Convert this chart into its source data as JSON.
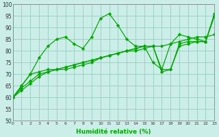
{
  "title": "",
  "xlabel": "Humidité relative (%)",
  "ylabel": "",
  "bg_color": "#cceee8",
  "grid_color": "#99ccbb",
  "line_color": "#00aa00",
  "ylim": [
    50,
    100
  ],
  "xlim": [
    0,
    23
  ],
  "yticks": [
    50,
    55,
    60,
    65,
    70,
    75,
    80,
    85,
    90,
    95,
    100
  ],
  "xticks": [
    0,
    1,
    2,
    3,
    4,
    5,
    6,
    7,
    8,
    9,
    10,
    11,
    12,
    13,
    14,
    15,
    16,
    17,
    18,
    19,
    20,
    21,
    22,
    23
  ],
  "series": [
    [
      60,
      65,
      70,
      77,
      82,
      85,
      86,
      83,
      81,
      86,
      94,
      96,
      91,
      85,
      82,
      82,
      75,
      72,
      83,
      87,
      86,
      85,
      84,
      96
    ],
    [
      60,
      65,
      70,
      71,
      72,
      72,
      73,
      74,
      75,
      76,
      77,
      78,
      79,
      80,
      80,
      81,
      82,
      82,
      83,
      84,
      85,
      86,
      86,
      87
    ],
    [
      60,
      63,
      66,
      69,
      71,
      72,
      73,
      74,
      75,
      76,
      77,
      78,
      79,
      80,
      81,
      82,
      82,
      71,
      72,
      82,
      83,
      84,
      84,
      95
    ],
    [
      60,
      64,
      67,
      70,
      71,
      72,
      72,
      73,
      74,
      75,
      77,
      78,
      79,
      80,
      81,
      82,
      82,
      72,
      72,
      83,
      84,
      84,
      84,
      95
    ]
  ]
}
